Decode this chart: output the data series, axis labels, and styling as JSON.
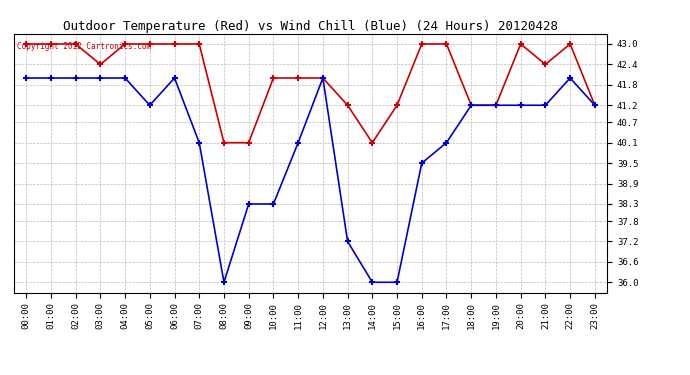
{
  "title": "Outdoor Temperature (Red) vs Wind Chill (Blue) (24 Hours) 20120428",
  "copyright": "Copyright 2012 Cartronics.com",
  "hours": [
    "00:00",
    "01:00",
    "02:00",
    "03:00",
    "04:00",
    "05:00",
    "06:00",
    "07:00",
    "08:00",
    "09:00",
    "10:00",
    "11:00",
    "12:00",
    "13:00",
    "14:00",
    "15:00",
    "16:00",
    "17:00",
    "18:00",
    "19:00",
    "20:00",
    "21:00",
    "22:00",
    "23:00"
  ],
  "temp_red": [
    43.0,
    43.0,
    43.0,
    42.4,
    43.0,
    43.0,
    43.0,
    43.0,
    40.1,
    40.1,
    42.0,
    42.0,
    42.0,
    41.2,
    40.1,
    41.2,
    43.0,
    43.0,
    41.2,
    41.2,
    43.0,
    42.4,
    43.0,
    41.2
  ],
  "wind_chill_blue": [
    42.0,
    42.0,
    42.0,
    42.0,
    42.0,
    41.2,
    42.0,
    40.1,
    36.0,
    38.3,
    38.3,
    40.1,
    42.0,
    37.2,
    36.0,
    36.0,
    39.5,
    40.1,
    41.2,
    41.2,
    41.2,
    41.2,
    42.0,
    41.2
  ],
  "ylim": [
    35.7,
    43.3
  ],
  "yticks": [
    36.0,
    36.6,
    37.2,
    37.8,
    38.3,
    38.9,
    39.5,
    40.1,
    40.7,
    41.2,
    41.8,
    42.4,
    43.0
  ],
  "red_color": "#cc0000",
  "blue_color": "#0000cc",
  "bg_color": "#ffffff",
  "grid_color": "#bbbbbb",
  "title_fontsize": 9,
  "tick_fontsize": 6.5,
  "copyright_color": "#cc0000",
  "copyright_fontsize": 5.5
}
